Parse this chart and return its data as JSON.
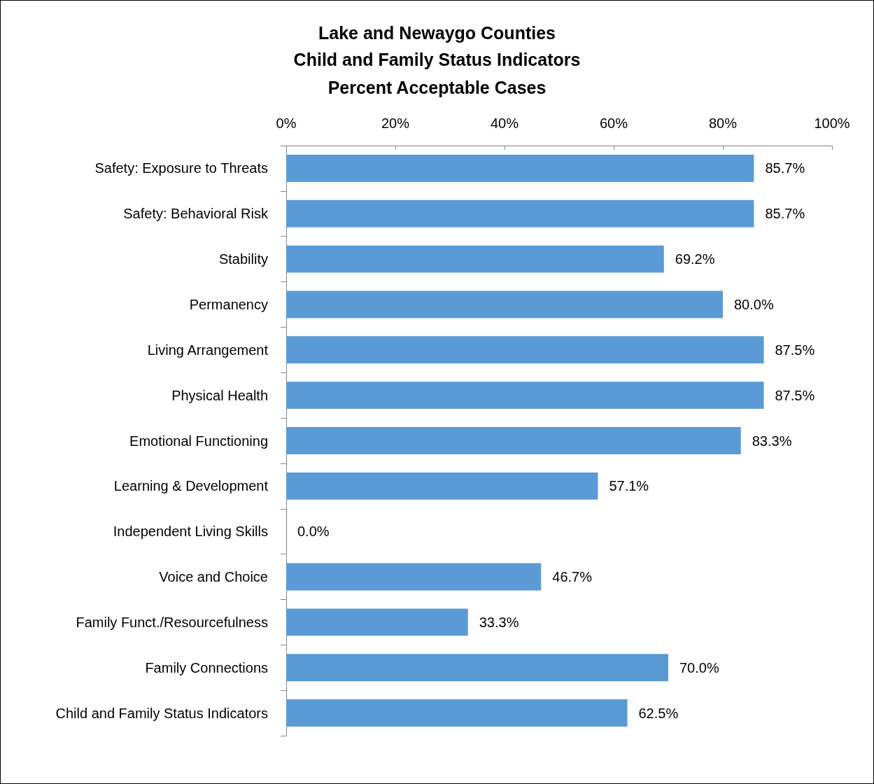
{
  "chart_data": {
    "type": "bar",
    "orientation": "horizontal",
    "title": "Lake and Newaygo Counties\nChild and Family Status Indicators",
    "subtitle": "Percent Acceptable Cases",
    "categories": [
      "Safety: Exposure to Threats",
      "Safety: Behavioral Risk",
      "Stability",
      "Permanency",
      "Living Arrangement",
      "Physical Health",
      "Emotional Functioning",
      "Learning & Development",
      "Independent Living Skills",
      "Voice and Choice",
      "Family Funct./Resourcefulness",
      "Family Connections",
      "Child and Family Status Indicators"
    ],
    "values": [
      85.7,
      85.7,
      69.2,
      80.0,
      87.5,
      87.5,
      83.3,
      57.1,
      0.0,
      46.7,
      33.3,
      70.0,
      62.5
    ],
    "value_labels": [
      "85.7%",
      "85.7%",
      "69.2%",
      "80.0%",
      "87.5%",
      "87.5%",
      "83.3%",
      "57.1%",
      "0.0%",
      "46.7%",
      "33.3%",
      "70.0%",
      "62.5%"
    ],
    "color": "#5b9bd5",
    "xlim": [
      0,
      100
    ],
    "xticks": [
      {
        "value": 0,
        "label": "0%"
      },
      {
        "value": 20,
        "label": "20%"
      },
      {
        "value": 40,
        "label": "40%"
      },
      {
        "value": 60,
        "label": "60%"
      },
      {
        "value": 80,
        "label": "80%"
      },
      {
        "value": 100,
        "label": "100%"
      }
    ],
    "grid": false
  }
}
